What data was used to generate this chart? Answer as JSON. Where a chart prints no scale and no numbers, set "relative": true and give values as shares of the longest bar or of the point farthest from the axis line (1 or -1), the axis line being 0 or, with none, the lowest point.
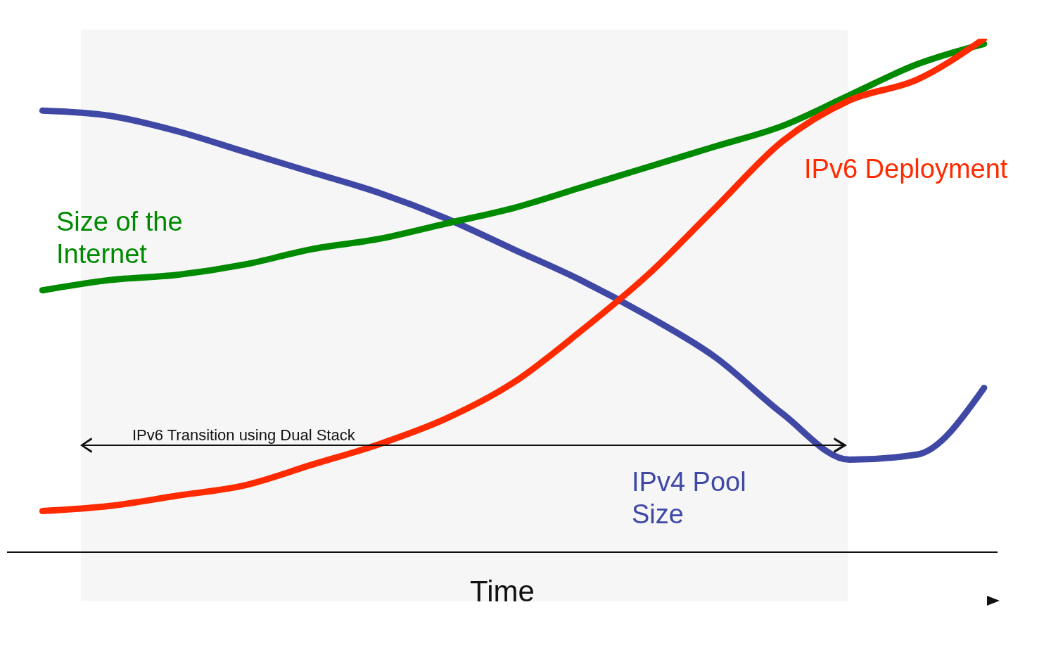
{
  "chart_data": {
    "type": "line",
    "relative": true,
    "xlabel": "Time",
    "annotations": [
      "IPv6 Transition using Dual Stack"
    ],
    "categories": [
      null,
      null,
      null,
      null,
      null,
      null,
      null,
      null,
      null,
      null,
      null,
      null,
      null,
      null,
      null
    ],
    "series": [
      {
        "name": "IPv4 Pool Size",
        "color": "#3f48a5",
        "values": [
          0.86,
          0.85,
          0.82,
          0.78,
          0.74,
          0.7,
          0.65,
          0.59,
          0.53,
          0.46,
          0.38,
          0.27,
          0.18,
          0.19,
          0.32
        ]
      },
      {
        "name": "Size of the Internet",
        "color": "#008a00",
        "values": [
          0.51,
          0.53,
          0.54,
          0.56,
          0.59,
          0.61,
          0.64,
          0.67,
          0.71,
          0.75,
          0.79,
          0.83,
          0.89,
          0.95,
          0.99
        ]
      },
      {
        "name": "IPv6 Deployment",
        "color": "#ff2a00",
        "values": [
          0.08,
          0.09,
          0.11,
          0.13,
          0.17,
          0.21,
          0.26,
          0.33,
          0.43,
          0.54,
          0.67,
          0.8,
          0.88,
          0.92,
          1
        ]
      }
    ],
    "grid": false,
    "legend": false,
    "marker": "none",
    "line_style": "solid"
  }
}
